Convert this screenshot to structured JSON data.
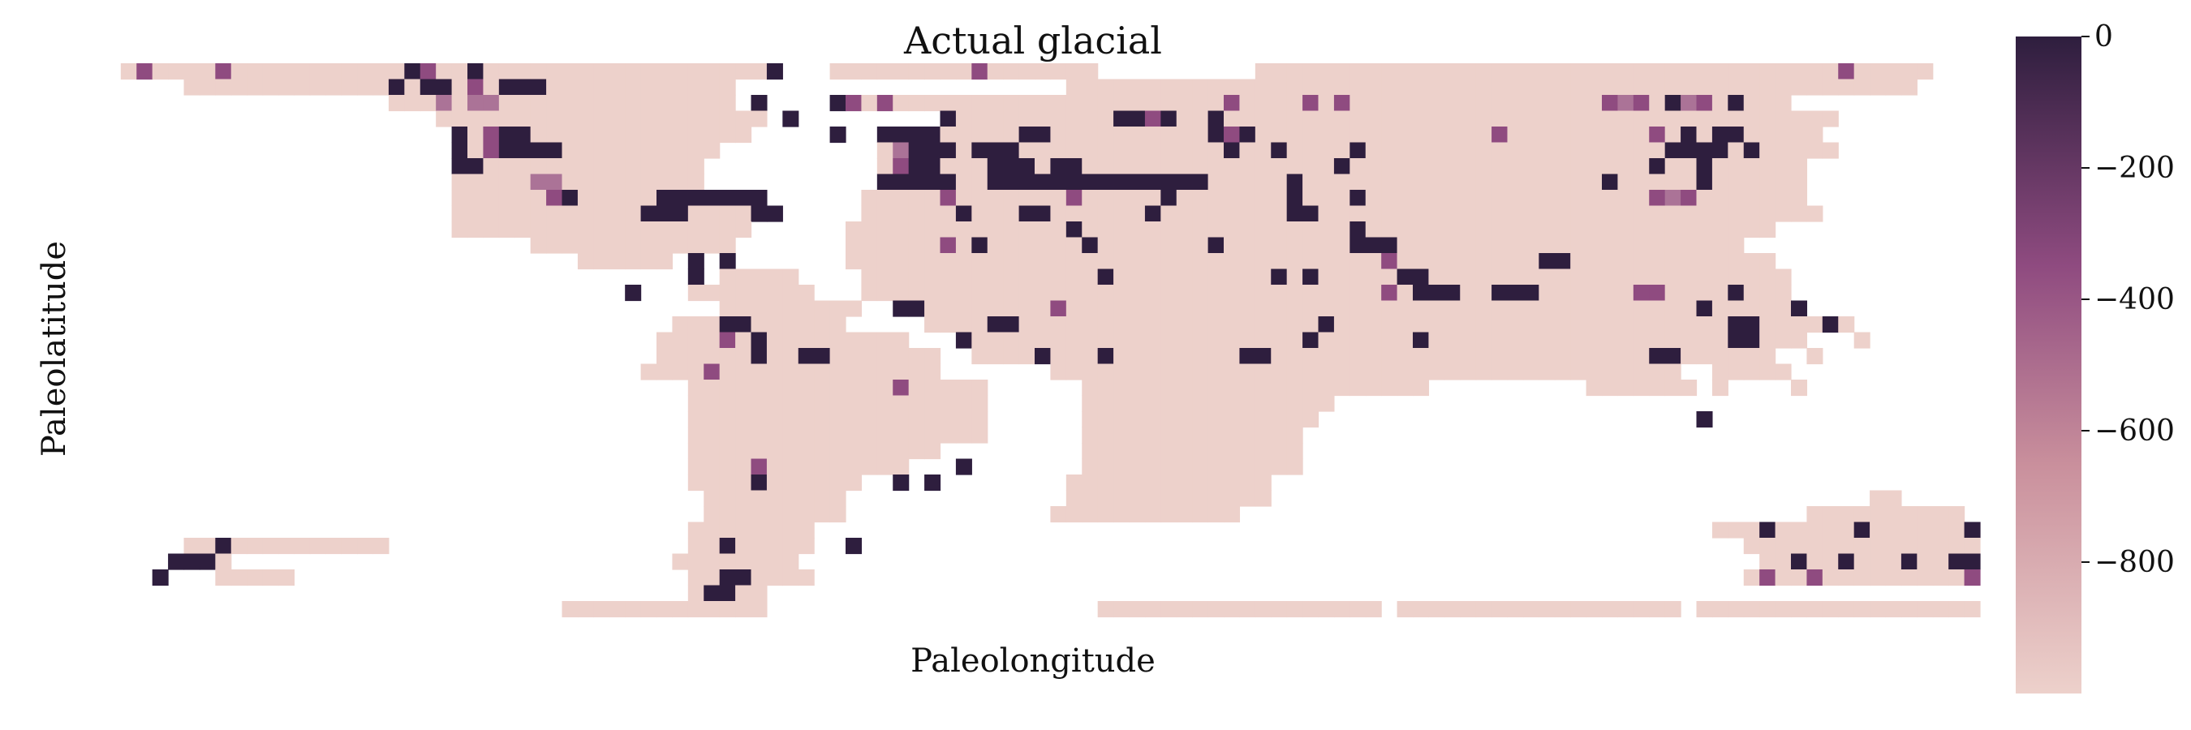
{
  "chart_data": {
    "type": "heatmap",
    "title": "Actual glacial",
    "xlabel": "Paleolongitude",
    "ylabel": "Paleolatitude",
    "colorbar": {
      "ticks": [
        0,
        -200,
        -400,
        -600,
        -800
      ],
      "tick_labels": [
        "0",
        "−200",
        "−400",
        "−600",
        "−800"
      ],
      "range": [
        -1000,
        0
      ],
      "colors": {
        "high": "#2e1e3e",
        "mid": "#8f4b80",
        "low": "#edd1cb"
      }
    },
    "grid_on": false,
    "legend": "colorbar-right",
    "grid": {
      "cols": 120,
      "rows": 36,
      "cell_value_codes": {
        "L": -1000,
        "M": -650,
        "P": -500,
        "D": 0
      },
      "map": [
        "..LPLLLLPLLLLLLLLLLLDPLLDLLLLLLLLLLLLLLLLLLD...LLLLLLLLLPLLLLLLL..........LLLLLLLLLLLLLLLLLLLLLLLLLLLLLLLLLLLLLPLLLLL...",
        "......LLLLLLLLLLLLLDLDDLPLDDDLLLLLLLLLLLL.....................LLLLLLLLLLLLLLLLLLLLLLLLLLLLLLLLLLLLLLLLLLLLLLLLLLLLLL...",
        "...................LLLMLMMLLLLLLLLLLLLLLL.D....DPLPLLLLLLLLLLLLLLLLLLLLLPLLLLPLPLLLLLLLLLLLLLLLLPMPLDMPLDLLL.......",
        "......................LLLLLLLLLLLLLLLLLLLLL.D.........DLLLLLLLLLLDDPDLLDLLLLLLLLLLLLLLLLLLLLLLLLLLLLLLLLLLLLLLL.......",
        ".......................DLPDDLLLLLLLLLLLLLL.....D..DDDDLLLLLDDLLLLLLLLLLDPDLLLLLLLLLLLLLLLPLLLLLLLLLPLDLDDLLLLL........",
        ".......................DLPDDDDLLLLLLLLLL..........LMDDDLDDDLLLLLLLLLLLLLDLLDLLLLDLLLLLLLLLLLLLLLLLLLDDDDLDLLLLL........",
        ".......................DDLLLLLLLLLLLLLL...........LPDDLLLDDDLDDLLLLLLLLLLLLLLLLDLLLLLLLLLLLLLLLLLLLDLLDLLLLLL........",
        ".......................LLLLLMMLLLLLLLLL...........DDDDDLLDDDDDDDDDDDDDDLLLLLDLLLLLLLLLLLLLLLLLLLDLLLLLDLLLLLL..........",
        ".......................LLLLLLPDLLLLLDDDDDDD......LLLLLPLLLLLLLPLLLLLDLLLLLLLDLLLDLLLLLLLLLLLLLLLLLLPMPLLLLLLL..........",
        ".......................LLLLLLLLLLLLDDDLLLLDD.....LLLLLLDLLLDDLLLLLLDLLLLLLLLDDLLLLLLLLLLLLLLLLLLLLLLLLLLLLLLLL.........",
        ".......................LLLLLLLLLLLLLLLLLLL......LLLLLLLLLLLLLLDLLLLLLLLLLLLLLLLLDLLLLLLLLLLLLLLLLLLLLLLLLLL..........",
        "............................LLLLLLLLLLLLL.......LLLLLLPLDLLLLLLDLLLLLLLDLLLLLLLLDDDLLLLLLLLLLLLLLLLLLLLLL...........",
        "...............................LLLLLL.D.D.......LLLLLLLLLLLLLLLLLLLLLLLLLLLLLLLLLLPLLLLLLLLLDDLLLLLLLLLLLLL..........",
        "......................................D.LLLLL....LLLLLLLLLLLLLLLDLLLLLLLLLLDLDLLLLLDDLLLLLLLLLLLLLLLLLLLLLLL..........",
        "..................................D...LLLLLLLL...LLLLLLLLLLLLLLLLLLLLLLLLLLLLLLLLLPLDDDLLDDDLLLLLLPPLLLLDLLL..........",
        "........................................LLLLLLLLL..DDLLLLLLLLPLLLLLLLLLLLLLLLLLLLLLLLLLLLLLLLLLLLLLLLLDLLLLLD..........",
        ".....................................LLLDDLLLLLL.....LLLLDDLLLLLLLLLLLLLLLLLLLDLLLLLLLLLLLLLLLLLLLLLLLLLDDLLLLDL.........",
        "....................................LLLLPLDLLLLLLLLL...DLLLLLLLLLLLLLLLLLLLLLDLLLLLLDLLLLLLLLLLLLLLLLLLLDDLLL...L.........",
        "....................................LLLLLLDLLDDLLLLLLL..LLLLDLLLDLLLLLLLLDDLLLLLLLLLLLLLLLLLLLLLLLLDDLLLLLL..L.........",
        "...................................LLLLPLLLLLLLLLLLLLL.......LLLLLLLLLLLLLLLLLLLLLLLLLLLLLLLLLLLLLLLL..LLLLL...........",
        "......................................LLLLLLLLLLLLLPLLLLL......LLLLLLLLLLLLLLLLLLLLLL..........LLLLLLL.L....L...........",
        "......................................LLLLLLLLLLLLLLLLLLL......LLLLLLLLLLLLLLLL.......................................",
        "......................................LLLLLLLLLLLLLLLLLLL......LLLLLLLLLLLLLLL........................D...............",
        "......................................LLLLLLLLLLLLLLLLLLL......LLLLLLLLLLLLLL...............................................",
        "......................................LLLLLLLLLLLLLLLL.........LLLLLLLLLLLLLL....................................................",
        "......................................LLLLPLLLLLLLLL...D.......LLLLLLLLLLLLLL...................................................",
        "......................................LLLLDLLLLLL..D.D........LLLLLLLLLLLLL...........................................",
        ".......................................LLLLLLLLL..............LLLLLLLLLLLLL......................................LL.........",
        ".......................................LLLLLLLLL.............LLLLLLLLLLLL....................................LLLLLLLLLL.....",
        "......................................LLLLLLLL.........................................................LLLDLLLLLDLLLLLLDD....",
        "......LLDLLLLLLLLLL...................LLDLLLLL..D........................................................LLLLLLLLLLLLLLLLLL....",
        ".....DDDL............................LLLLLLLL.............................................................LLDLLDLLLDLLDDDDDLLL....",
        "....D...LLLLL.........................LLDDLLLL...........................................................LPLLPLLLLLLLLLPLLLDPL....",
        "......................................LDDLL...................................................................................L....",
        "..............................LLLLLLLLLLLLL.....................LLLLLLLLLLLLLLLLLL.LLLLLLLLLLLLLLLLLL.LLLLLLLLLLLLLLLLLLLLLLLLLLLL......",
        "........................................................................................................................"
      ]
    }
  }
}
